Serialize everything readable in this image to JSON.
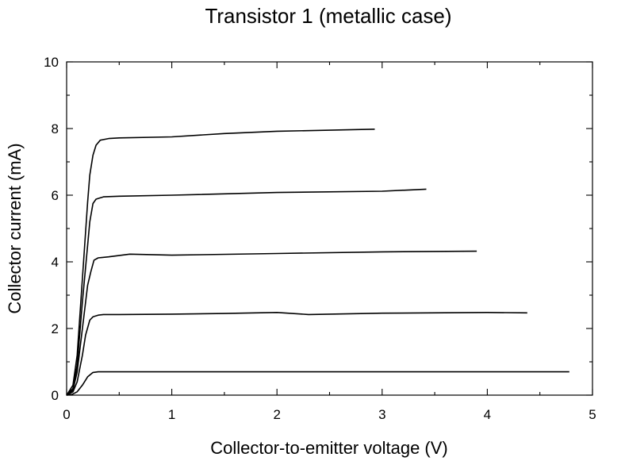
{
  "chart_data": {
    "type": "line",
    "title": "Transistor 1 (metallic case)",
    "xlabel": "Collector-to-emitter voltage (V)",
    "ylabel": "Collector current (mA)",
    "xlim": [
      0,
      5
    ],
    "ylim": [
      0,
      10
    ],
    "xticks": [
      0,
      1,
      2,
      3,
      4,
      5
    ],
    "yticks": [
      0,
      2,
      4,
      6,
      8,
      10
    ],
    "xtick_labels": [
      "0",
      "1",
      "2",
      "3",
      "4",
      "5"
    ],
    "ytick_labels": [
      "0",
      "2",
      "4",
      "6",
      "8",
      "10"
    ],
    "grid": false,
    "legend": "none",
    "line_color": "#000000",
    "series": [
      {
        "x": [
          0,
          0.05,
          0.1,
          0.15,
          0.2,
          0.25,
          0.3,
          0.35,
          0.5,
          1.0,
          2.0,
          3.0,
          4.0,
          4.78
        ],
        "y": [
          0,
          0.02,
          0.1,
          0.3,
          0.55,
          0.68,
          0.7,
          0.7,
          0.7,
          0.7,
          0.7,
          0.7,
          0.7,
          0.7
        ]
      },
      {
        "x": [
          0,
          0.06,
          0.1,
          0.15,
          0.18,
          0.22,
          0.25,
          0.3,
          0.35,
          0.5,
          1.0,
          1.5,
          2.0,
          2.3,
          3.0,
          4.0,
          4.38
        ],
        "y": [
          0,
          0.1,
          0.4,
          1.2,
          1.8,
          2.25,
          2.35,
          2.4,
          2.42,
          2.42,
          2.43,
          2.45,
          2.48,
          2.42,
          2.46,
          2.48,
          2.47
        ]
      },
      {
        "x": [
          0,
          0.06,
          0.1,
          0.15,
          0.2,
          0.23,
          0.26,
          0.3,
          0.4,
          0.6,
          1.0,
          2.0,
          3.0,
          3.9
        ],
        "y": [
          0,
          0.15,
          0.7,
          2.0,
          3.3,
          3.7,
          4.05,
          4.12,
          4.15,
          4.23,
          4.2,
          4.25,
          4.3,
          4.32
        ]
      },
      {
        "x": [
          0,
          0.06,
          0.1,
          0.15,
          0.2,
          0.22,
          0.25,
          0.28,
          0.35,
          0.5,
          1.0,
          2.0,
          3.0,
          3.42
        ],
        "y": [
          0,
          0.2,
          0.9,
          2.8,
          4.5,
          5.2,
          5.75,
          5.88,
          5.95,
          5.97,
          6.0,
          6.08,
          6.12,
          6.18
        ]
      },
      {
        "x": [
          0,
          0.06,
          0.1,
          0.15,
          0.2,
          0.22,
          0.25,
          0.28,
          0.32,
          0.4,
          0.5,
          1.0,
          1.5,
          2.0,
          2.5,
          2.93
        ],
        "y": [
          0,
          0.3,
          1.2,
          3.5,
          5.8,
          6.6,
          7.2,
          7.5,
          7.65,
          7.7,
          7.72,
          7.75,
          7.85,
          7.92,
          7.95,
          7.98
        ]
      }
    ]
  }
}
